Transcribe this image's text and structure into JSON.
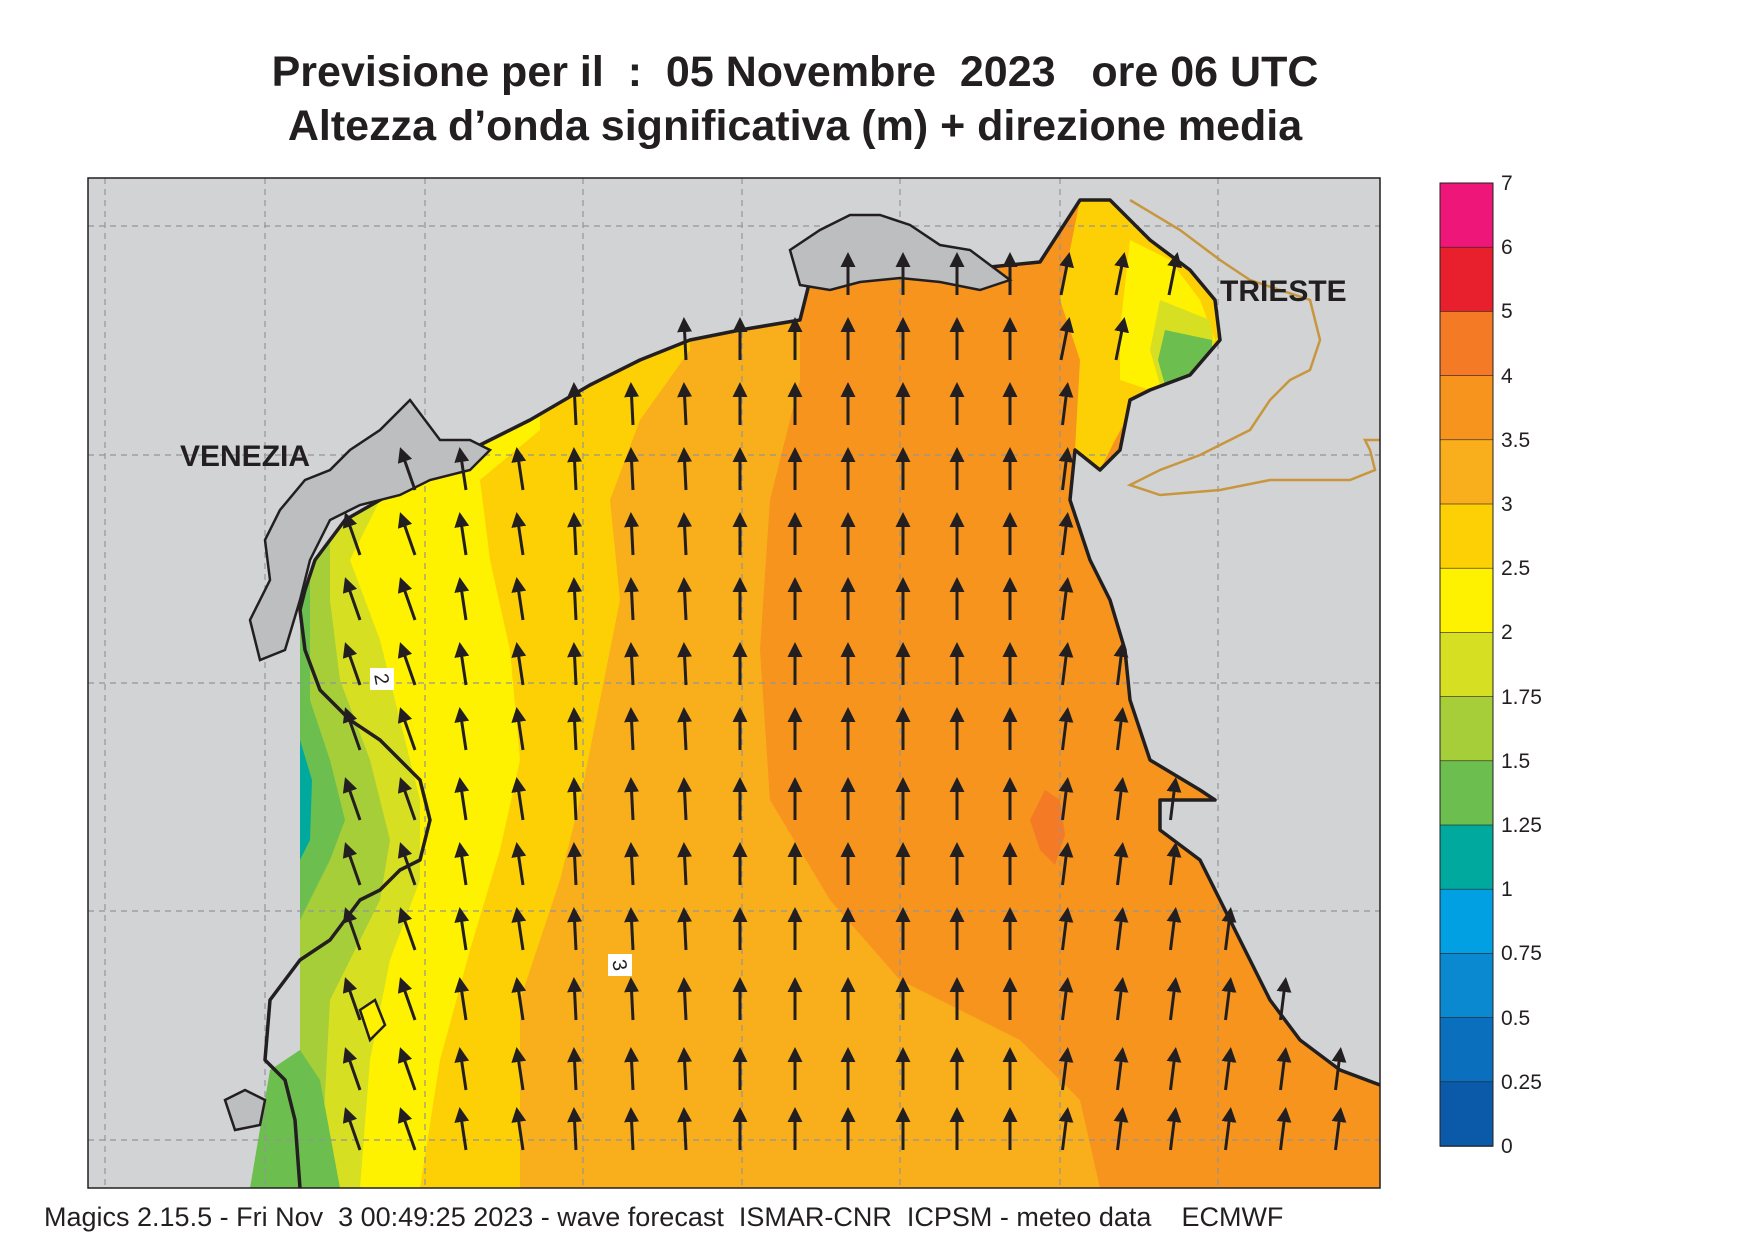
{
  "title": {
    "line1": "Previsione per il  :  05 Novembre  2023   ore 06 UTC",
    "line2": "Altezza d’onda significativa (m) + direzione media"
  },
  "places": {
    "venezia": "VENEZIA",
    "trieste": "TRIESTE"
  },
  "contour_labels": [
    "2",
    "3"
  ],
  "footer": "Magics 2.15.5 - Fri Nov  3 00:49:25 2023 - wave forecast  ISMAR-CNR  ICPSM - meteo data    ECMWF",
  "colorbar": {
    "labels": [
      "7",
      "6",
      "5",
      "4",
      "3.5",
      "3",
      "2.5",
      "2",
      "1.75",
      "1.5",
      "1.25",
      "1",
      "0.75",
      "0.5",
      "0.25",
      "0"
    ],
    "colors": [
      "#ee1679",
      "#e8202d",
      "#f47a26",
      "#f7941d",
      "#f9ae1b",
      "#fdd005",
      "#fff200",
      "#d7df23",
      "#a6ce39",
      "#6cbe4f",
      "#00a99d",
      "#00a0e3",
      "#0a88d0",
      "#0a70be",
      "#0b5aaa"
    ]
  },
  "colors": {
    "land": "#d1d3d4",
    "coast": "#231f20",
    "border": "#c8963e",
    "arrow": "#231f20"
  }
}
